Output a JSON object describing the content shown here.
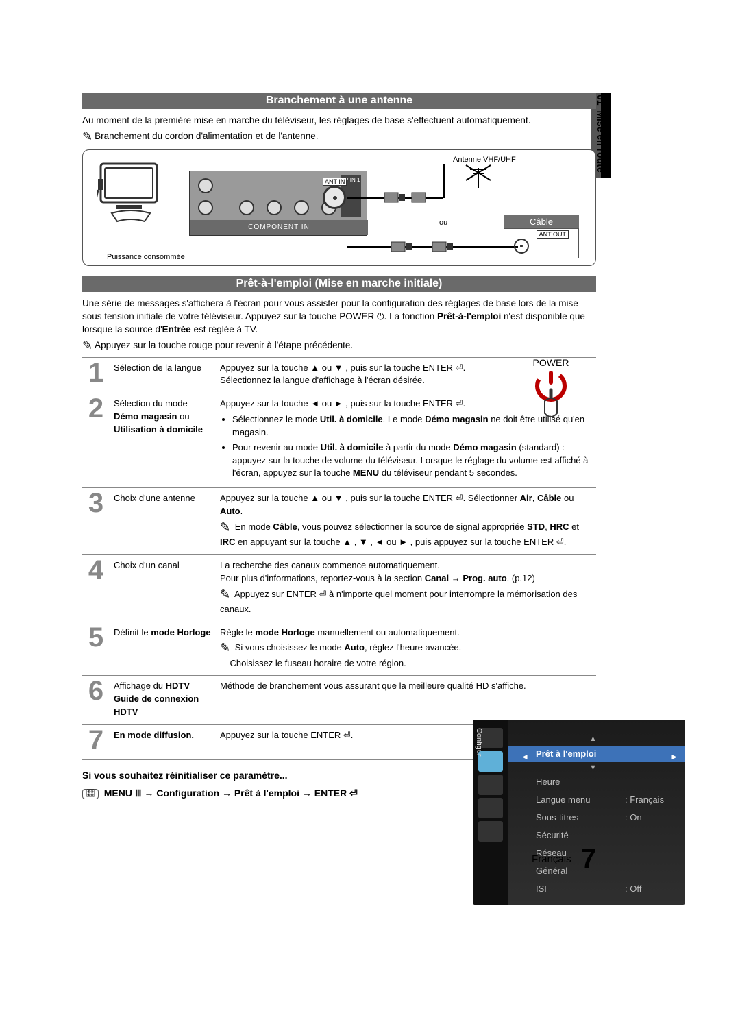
{
  "side": {
    "chapter": "01",
    "title": "Mise en route"
  },
  "section1": {
    "header": "Branchement à une antenne",
    "intro": "Au moment de la première mise en marche du téléviseur, les réglages de base s'effectuent automatiquement.",
    "note": "Branchement du cordon d'alimentation et de l'antenne.",
    "diagram": {
      "power": "Puissance consommée",
      "component": "COMPONENT IN",
      "avin": "AV IN 1",
      "ant_in": "ANT IN",
      "antenna": "Antenne VHF/UHF",
      "ou": "ou",
      "cable_hdr": "Câble",
      "ant_out": "ANT OUT"
    }
  },
  "section2": {
    "header": "Prêt-à-l'emploi (Mise en marche initiale)",
    "intro1": "Une série de messages s'affichera à l'écran pour vous assister pour la configuration des réglages de base lors de la mise sous tension initiale de votre téléviseur. Appuyez sur la touche POWER ⏻. La fonction ",
    "intro1b": "Prêt-à-l'emploi",
    "intro1c": " n'est disponible que lorsque la source d'",
    "intro1d": "Entrée",
    "intro1e": " est réglée à TV.",
    "note": "Appuyez sur la touche rouge pour revenir à l'étape précédente.",
    "power_label": "POWER"
  },
  "steps": [
    {
      "n": "1",
      "title": "Sélection de la langue",
      "body": "Appuyez sur la touche ▲ ou ▼ , puis sur la touche ENTER ⏎.\nSélectionnez la langue d'affichage à l'écran désirée."
    },
    {
      "n": "2",
      "title_html": "Sélection du mode <b>Démo magasin</b> ou <b>Utilisation à domicile</b>",
      "line1": "Appuyez sur la touche ◄ ou ► , puis sur la touche ENTER ⏎.",
      "bul1": "Sélectionnez le mode <b>Util. à domicile</b>. Le mode <b>Démo magasin</b> ne doit être utilisé qu'en magasin.",
      "bul2": "Pour revenir au mode <b>Util. à domicile</b> à partir du mode <b>Démo magasin</b> (standard) : appuyez sur la touche de volume du téléviseur. Lorsque le réglage du volume est affiché à l'écran, appuyez sur la touche <b>MENU</b> du téléviseur pendant 5 secondes."
    },
    {
      "n": "3",
      "title": "Choix d'une antenne",
      "line1": "Appuyez sur la touche ▲ ou ▼ , puis sur la touche ENTER ⏎. Sélectionner <b>Air</b>, <b>Câble</b> ou <b>Auto</b>.",
      "note": "En mode <b>Câble</b>, vous pouvez sélectionner la source de signal appropriée <b>STD</b>, <b>HRC</b> et <b>IRC</b> en appuyant sur la touche ▲ , ▼ , ◄ ou ► , puis appuyez sur la touche ENTER ⏎."
    },
    {
      "n": "4",
      "title": "Choix d'un canal",
      "line1": "La recherche des canaux commence automatiquement.",
      "line2": "Pour plus d'informations, reportez-vous à la section <b>Canal → Prog. auto</b>. (p.12)",
      "note": "Appuyez sur ENTER ⏎ à n'importe quel moment pour interrompre la mémorisation des canaux."
    },
    {
      "n": "5",
      "title_html": "Définit le <b>mode Horloge</b>",
      "line1": "Règle le <b>mode Horloge</b> manuellement ou automatiquement.",
      "note": "Si vous choisissez le mode <b>Auto</b>, réglez l'heure avancée.\nChoisissez le fuseau horaire de votre région."
    },
    {
      "n": "6",
      "title_html": "Affichage du <b>HDTV Guide de connexion HDTV</b>",
      "line1": "Méthode de branchement vous assurant que la meilleure qualité HD s'affiche."
    },
    {
      "n": "7",
      "title_html": "<b>En mode diffusion.</b>",
      "line1": "Appuyez sur la touche ENTER ⏎."
    }
  ],
  "reset": {
    "heading": "Si vous souhaitez réinitialiser ce paramètre...",
    "path": "MENU Ⅲ → Configuration → Prêt à l'emploi → ENTER ⏎"
  },
  "osd": {
    "vlabel": "Configur",
    "highlight": "Prêt à l'emploi",
    "rows": [
      {
        "k": "Heure",
        "v": ""
      },
      {
        "k": "Langue menu",
        "v": ": Français"
      },
      {
        "k": "Sous-titres",
        "v": ": On"
      },
      {
        "k": "Sécurité",
        "v": ""
      },
      {
        "k": "Réseau",
        "v": ""
      },
      {
        "k": "Général",
        "v": ""
      },
      {
        "k": "ISI",
        "v": ": Off"
      }
    ]
  },
  "footer": {
    "lang": "Français",
    "page": "7"
  },
  "colors": {
    "header_bg": "#6a6a6a",
    "step_num": "#888888",
    "osd_bg_top": "#1b1b1b",
    "osd_bg_bot": "#2f2f2f",
    "osd_highlight": "#3d72b8",
    "rule": "#888888"
  }
}
